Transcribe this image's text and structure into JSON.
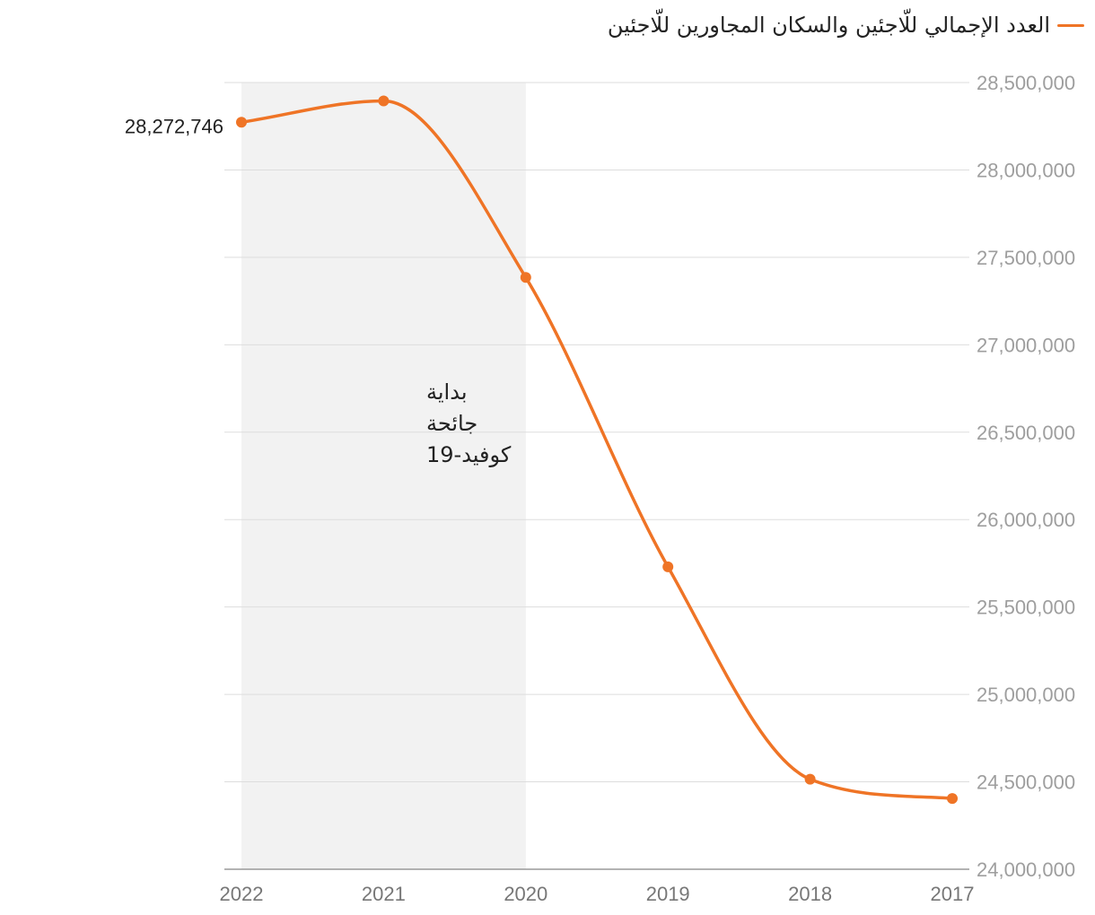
{
  "chart_data": {
    "type": "line",
    "title": "",
    "xlabel": "",
    "ylabel": "",
    "x": [
      "2017",
      "2018",
      "2019",
      "2020",
      "2021",
      "2022"
    ],
    "series": [
      {
        "name": "العدد الإجمالي للّاجئين والسكان المجاورين للّاجئين",
        "values": [
          24405000,
          24515000,
          25730000,
          27385000,
          28395000,
          28272746
        ],
        "color": "#ef7426"
      }
    ],
    "ylim": [
      24000000,
      28500000
    ],
    "yticks": [
      24000000,
      24500000,
      25000000,
      25500000,
      26000000,
      26500000,
      27000000,
      27500000,
      28000000,
      28500000
    ],
    "ytick_labels": [
      "24,000,000",
      "24,500,000",
      "25,000,000",
      "25,500,000",
      "26,000,000",
      "26,500,000",
      "27,000,000",
      "27,500,000",
      "28,000,000",
      "28,500,000"
    ],
    "x_direction": "right-to-left",
    "y_axis_side": "right",
    "grid": true,
    "legend_position": "top-right",
    "data_labels": [
      {
        "x": "2022",
        "text": "28,272,746"
      }
    ],
    "shaded_region": {
      "x_from": "2020",
      "x_to": "2022",
      "color": "#f2f2f2"
    },
    "annotation": {
      "lines": [
        "بداية",
        "جائحة",
        "كوفيد-19"
      ]
    }
  }
}
